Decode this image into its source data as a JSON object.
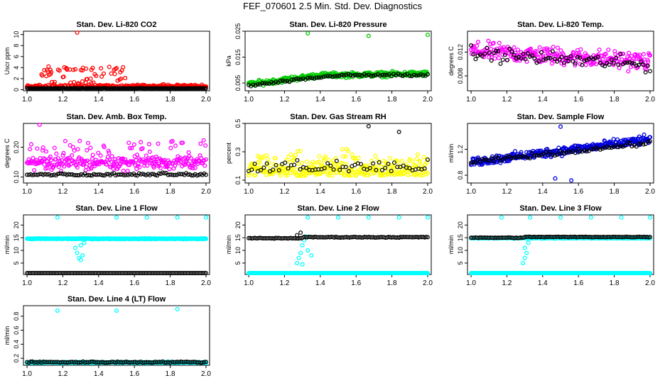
{
  "title": "FEF_070601  2.5 Min. Std. Dev. Diagnostics",
  "chart_data": [
    {
      "type": "scatter",
      "title": "Stan. Dev. Li-820 CO2",
      "ylabel": "Uscr ppm",
      "xticks": [
        "1.0",
        "1.2",
        "1.4",
        "1.6",
        "1.8",
        "2.0"
      ],
      "yticks": [
        "0",
        "2",
        "4",
        "6",
        "8",
        "10"
      ],
      "xlim": [
        0.98,
        2.02
      ],
      "ylim": [
        -0.2,
        10.6
      ],
      "series": [
        {
          "name": "primary",
          "color": "#ff0000",
          "trend": "baseline ~0.7 with spikes to ~4 near x=1.1-1.55; single outlier ~10.6 at x=1.28"
        },
        {
          "name": "secondary",
          "color": "#000000",
          "trend": "near 0.2 across range"
        }
      ]
    },
    {
      "type": "scatter",
      "title": "Stan. Dev. Li-820 Pressure",
      "ylabel": "kPa",
      "xticks": [
        "1.0",
        "1.2",
        "1.4",
        "1.6",
        "1.8",
        "2.0"
      ],
      "yticks": [
        "0.005",
        "0.015",
        "0.025"
      ],
      "xlim": [
        0.98,
        2.02
      ],
      "ylim": [
        0.002,
        0.025
      ],
      "series": [
        {
          "name": "primary",
          "color": "#00cc00",
          "trend": "rises from ~0.005 to ~0.009; outliers ~0.024 at x=1.33, 1.67, 2.0"
        },
        {
          "name": "secondary",
          "color": "#000000",
          "trend": "~0.004 rising to ~0.008"
        }
      ]
    },
    {
      "type": "scatter",
      "title": "Stan. Dev. Li-820 Temp.",
      "ylabel": "degrees C",
      "xticks": [
        "1.0",
        "1.2",
        "1.4",
        "1.6",
        "1.8",
        "2.0"
      ],
      "yticks": [
        "0.008",
        "0.012"
      ],
      "xlim": [
        0.98,
        2.02
      ],
      "ylim": [
        0.0055,
        0.0155
      ],
      "series": [
        {
          "name": "primary",
          "color": "#ff00ff",
          "trend": "~0.012 falling to ~0.010, scatter 0.007-0.015"
        },
        {
          "name": "secondary",
          "color": "#000000",
          "trend": "~0.012 falling to ~0.009"
        }
      ]
    },
    {
      "type": "scatter",
      "title": "Stan. Dev. Amb. Box Temp.",
      "ylabel": "degrees C",
      "xticks": [
        "1.0",
        "1.2",
        "1.4",
        "1.6",
        "1.8",
        "2.0"
      ],
      "yticks": [
        "0.10",
        "0.20"
      ],
      "xlim": [
        0.98,
        2.02
      ],
      "ylim": [
        0.08,
        0.28
      ],
      "series": [
        {
          "name": "primary",
          "color": "#ff00ff",
          "trend": "~0.15, scatter 0.10-0.24; outlier ~0.28 at x=1.07"
        },
        {
          "name": "secondary",
          "color": "#000000",
          "trend": "~0.10-0.11"
        }
      ]
    },
    {
      "type": "scatter",
      "title": "Stan. Dev. Gas Stream RH",
      "ylabel": "percent",
      "xticks": [
        "1.0",
        "1.2",
        "1.4",
        "1.6",
        "1.8",
        "2.0"
      ],
      "yticks": [
        "0.1",
        "0.3",
        "0.5"
      ],
      "xlim": [
        0.98,
        2.02
      ],
      "ylim": [
        0.08,
        0.5
      ],
      "series": [
        {
          "name": "primary",
          "color": "#ffff00",
          "trend": "scatter 0.1-0.45, mean ~0.22"
        },
        {
          "name": "secondary",
          "color": "#000000",
          "trend": "~0.15-0.3; outlier ~0.48 at x=1.67"
        }
      ]
    },
    {
      "type": "scatter",
      "title": "Stan. Dev. Sample Flow",
      "ylabel": "ml/min",
      "xticks": [
        "1.0",
        "1.2",
        "1.4",
        "1.6",
        "1.8",
        "2.0"
      ],
      "yticks": [
        "0.8",
        "1.2"
      ],
      "xlim": [
        0.98,
        2.02
      ],
      "ylim": [
        0.68,
        1.6
      ],
      "series": [
        {
          "name": "primary",
          "color": "#0000dd",
          "trend": "rises from ~1.0 to ~1.35; spike ~1.55 at x=1.5"
        },
        {
          "name": "secondary",
          "color": "#000000",
          "trend": "~1.0 rising to ~1.3"
        }
      ]
    },
    {
      "type": "scatter",
      "title": "Stan. Dev. Line 1 Flow",
      "ylabel": "ml/min",
      "xticks": [
        "1.0",
        "1.2",
        "1.4",
        "1.6",
        "1.8",
        "2.0"
      ],
      "yticks": [
        "5",
        "10",
        "15",
        "20"
      ],
      "xlim": [
        0.98,
        2.02
      ],
      "ylim": [
        0.5,
        24
      ],
      "series": [
        {
          "name": "primary",
          "color": "#00ffff",
          "trend": "flat ~14.5; dip to ~6 near x=1.3; outliers ~23"
        },
        {
          "name": "secondary",
          "color": "#000000",
          "trend": "flat ~1"
        }
      ]
    },
    {
      "type": "scatter",
      "title": "Stan. Dev. Line 2 Flow",
      "ylabel": "ml/min",
      "xticks": [
        "1.0",
        "1.2",
        "1.4",
        "1.6",
        "1.8",
        "2.0"
      ],
      "yticks": [
        "5",
        "10",
        "15",
        "20"
      ],
      "xlim": [
        0.98,
        2.02
      ],
      "ylim": [
        0.5,
        24
      ],
      "series": [
        {
          "name": "primary",
          "color": "#00ffff",
          "trend": "flat ~1; excursion to ~15 near x=1.3; outliers ~23"
        },
        {
          "name": "secondary",
          "color": "#000000",
          "trend": "flat ~15"
        }
      ]
    },
    {
      "type": "scatter",
      "title": "Stan. Dev. Line 3 Flow",
      "ylabel": "ml/min",
      "xticks": [
        "1.0",
        "1.2",
        "1.4",
        "1.6",
        "1.8",
        "2.0"
      ],
      "yticks": [
        "5",
        "10",
        "15",
        "20"
      ],
      "xlim": [
        0.98,
        2.02
      ],
      "ylim": [
        0.5,
        24
      ],
      "series": [
        {
          "name": "primary",
          "color": "#00ffff",
          "trend": "flat ~1 and ~15; dip near x=1.3; outliers ~23"
        },
        {
          "name": "secondary",
          "color": "#000000",
          "trend": "flat ~15"
        }
      ]
    },
    {
      "type": "scatter",
      "title": "Stan. Dev. Line 4 (LT) Flow",
      "ylabel": "ml/min",
      "xticks": [
        "1.0",
        "1.2",
        "1.4",
        "1.6",
        "1.8",
        "2.0"
      ],
      "yticks": [
        "0.2",
        "0.4",
        "0.6",
        "0.8"
      ],
      "xlim": [
        0.98,
        2.02
      ],
      "ylim": [
        0.1,
        0.95
      ],
      "series": [
        {
          "name": "primary",
          "color": "#00ffff",
          "trend": "flat ~0.14; outliers ~0.88 at x=1.17, 1.5, 1.84"
        },
        {
          "name": "secondary",
          "color": "#000000",
          "trend": "flat ~0.14"
        }
      ]
    }
  ]
}
